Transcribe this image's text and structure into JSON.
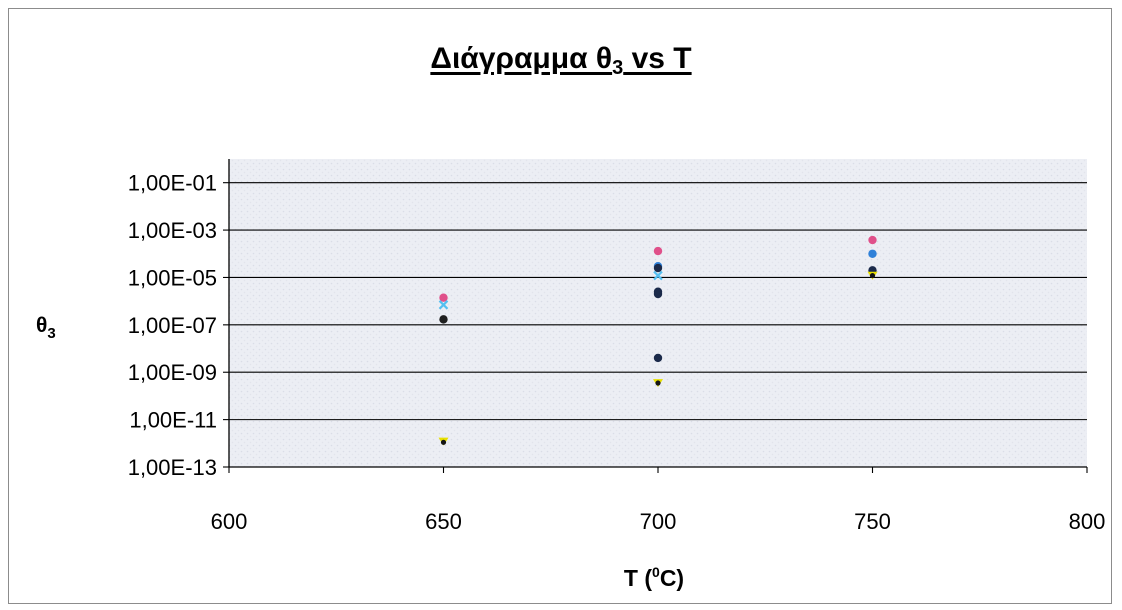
{
  "chart_data": {
    "type": "scatter",
    "title": {
      "main": "Διάγραμμα θ",
      "subscript": "3",
      "rest": " vs T"
    },
    "xlabel": {
      "main": "T (",
      "superscript": "0",
      "rest": "C)"
    },
    "ylabel": {
      "main": "θ",
      "subscript": "3"
    },
    "xlim": [
      600,
      800
    ],
    "x_ticks": [
      "600",
      "650",
      "700",
      "750",
      "800"
    ],
    "x_tick_values": [
      600,
      650,
      700,
      750,
      800
    ],
    "y_scale": "log",
    "ylim": [
      1e-13,
      1
    ],
    "y_ticks": [
      "1,00E-01",
      "1,00E-03",
      "1,00E-05",
      "1,00E-07",
      "1,00E-09",
      "1,00E-11",
      "1,00E-13"
    ],
    "y_tick_values": [
      0.1,
      0.001,
      1e-05,
      1e-07,
      1e-09,
      1e-11,
      1e-13
    ],
    "grid": "horizontal",
    "legend": "none",
    "series": [
      {
        "color": "#e0508a",
        "marker": "circle",
        "points": [
          [
            650,
            1.4e-06
          ],
          [
            700,
            0.00013
          ],
          [
            750,
            0.00038
          ]
        ]
      },
      {
        "color": "#2f80d8",
        "marker": "circle",
        "points": [
          [
            700,
            3e-05
          ],
          [
            750,
            0.0001
          ]
        ]
      },
      {
        "color": "#1b2a4a",
        "marker": "circle",
        "points": [
          [
            700,
            2.5e-05
          ],
          [
            700,
            2e-06
          ],
          [
            700,
            2.5e-06
          ],
          [
            700,
            4e-09
          ],
          [
            750,
            2e-05
          ]
        ]
      },
      {
        "color": "#55bff0",
        "marker": "x",
        "points": [
          [
            650,
            7e-07
          ],
          [
            700,
            1.2e-05
          ]
        ]
      },
      {
        "color": "#202020",
        "marker": "circle",
        "points": [
          [
            650,
            1.7e-07
          ]
        ]
      },
      {
        "color": "#e8e000",
        "marker": "triangle",
        "points": [
          [
            650,
            1.3e-12
          ],
          [
            700,
            3.8e-10
          ],
          [
            750,
            1.3e-05
          ]
        ]
      },
      {
        "color": "#141414",
        "marker": "dot",
        "points": [
          [
            650,
            1.1e-12
          ],
          [
            700,
            3.5e-10
          ],
          [
            750,
            1.2e-05
          ]
        ]
      }
    ]
  }
}
